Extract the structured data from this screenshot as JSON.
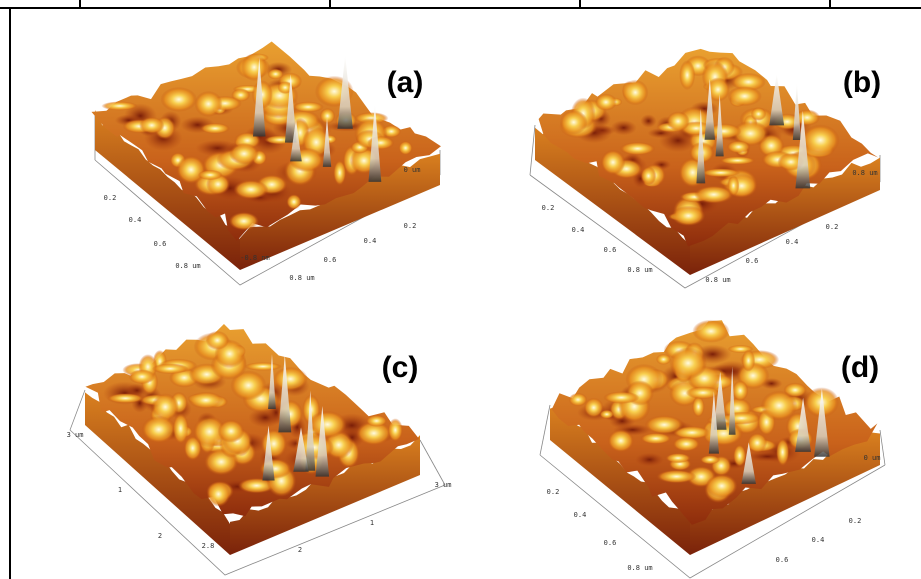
{
  "panels": [
    {
      "label": "(a)",
      "ticks": [
        "0.2",
        "0.4",
        "0.6",
        "0.8 um",
        "0.8 um",
        "0.6",
        "0.4",
        "0.2",
        "0 um",
        "-0.8 nm"
      ]
    },
    {
      "label": "(b)",
      "ticks": [
        "0.2",
        "0.4",
        "0.6",
        "0.8 um",
        "0.8 um",
        "0.6",
        "0.4",
        "0.2",
        "0.8 um"
      ]
    },
    {
      "label": "(c)",
      "ticks": [
        "3 um",
        "1",
        "2",
        "2.8",
        "2",
        "1",
        "3 um"
      ]
    },
    {
      "label": "(d)",
      "ticks": [
        "0.2",
        "0.4",
        "0.6",
        "0.8 um",
        "0.6",
        "0.4",
        "0.2",
        "0 um"
      ]
    }
  ]
}
